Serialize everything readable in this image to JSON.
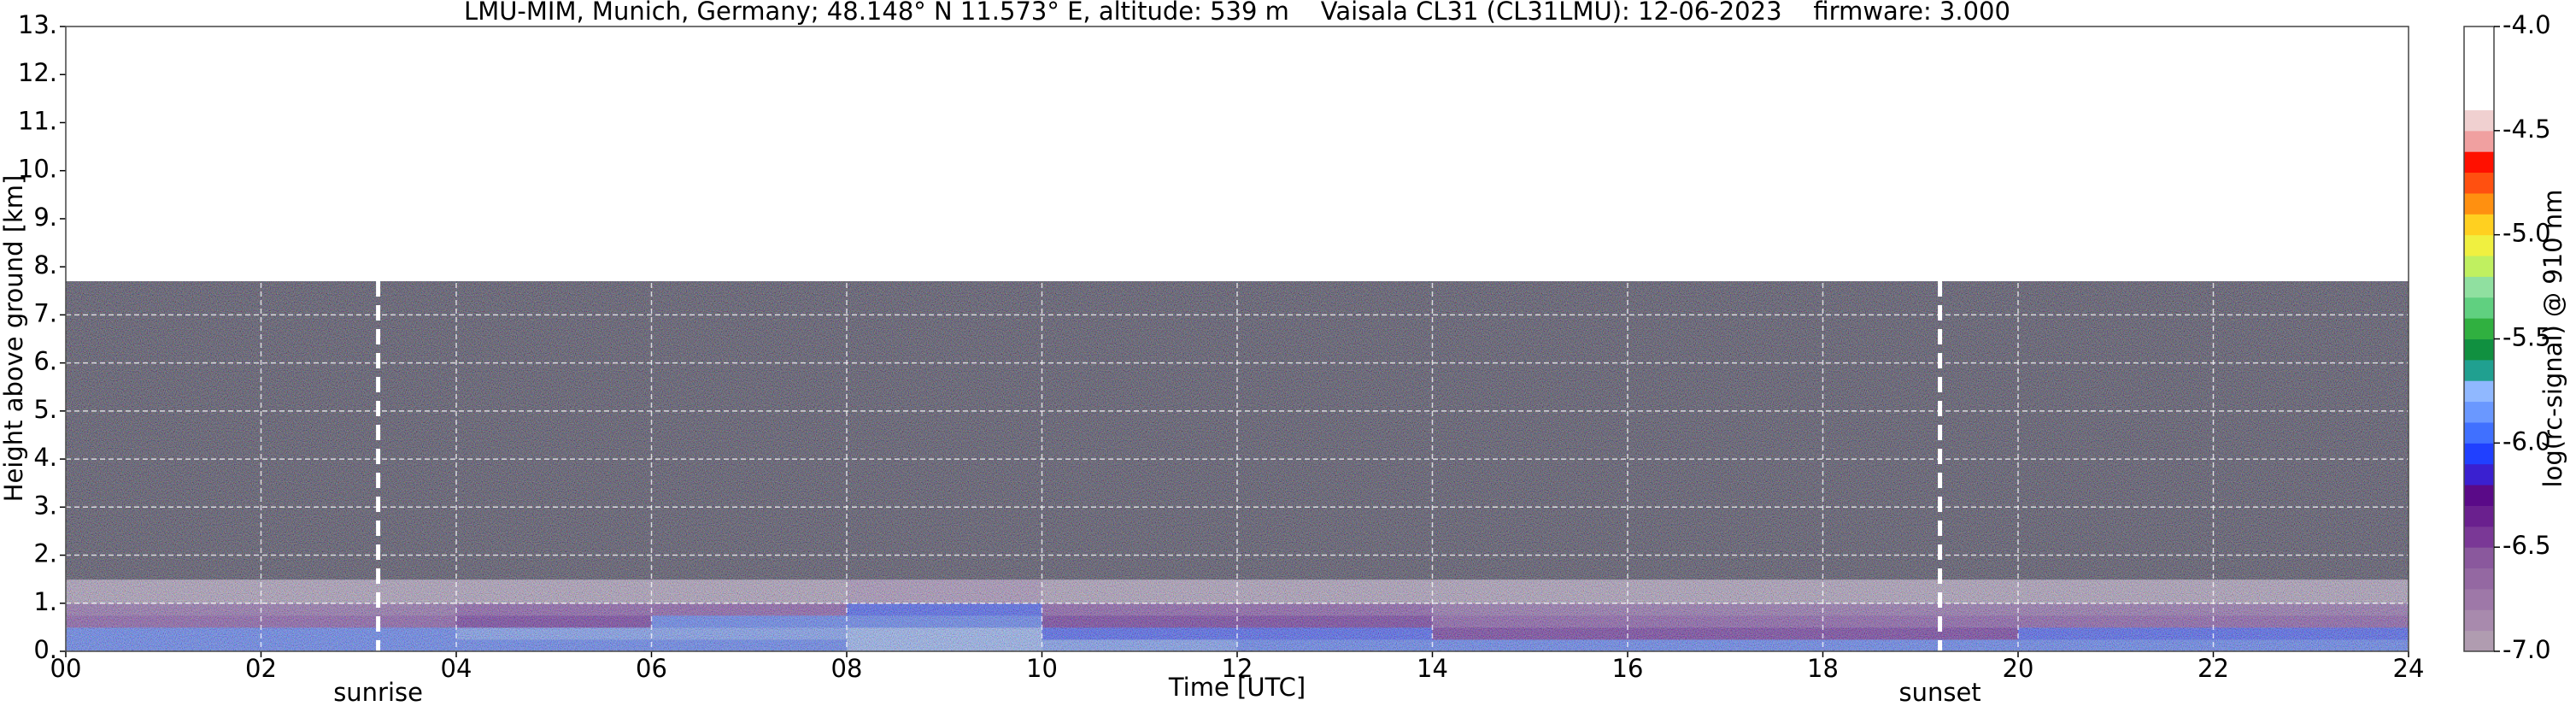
{
  "chart_data": {
    "type": "heatmap",
    "title": "LMU-MIM, Munich, Germany; 48.148° N 11.573° E, altitude: 539 m    Vaisala CL31 (CL31LMU): 12-06-2023    firmware: 3.000",
    "x_label": "Time [UTC]",
    "y_label": "Height above ground [km]",
    "colorbar_label": "log(rc-signal) @ 910 nm",
    "xlim": [
      0,
      24
    ],
    "xticks": [
      {
        "value": 0,
        "label": "00"
      },
      {
        "value": 2,
        "label": "02"
      },
      {
        "value": 4,
        "label": "04"
      },
      {
        "value": 6,
        "label": "06"
      },
      {
        "value": 8,
        "label": "08"
      },
      {
        "value": 10,
        "label": "10"
      },
      {
        "value": 12,
        "label": "12"
      },
      {
        "value": 14,
        "label": "14"
      },
      {
        "value": 16,
        "label": "16"
      },
      {
        "value": 18,
        "label": "18"
      },
      {
        "value": 20,
        "label": "20"
      },
      {
        "value": 22,
        "label": "22"
      },
      24
    ],
    "ylim": [
      0,
      13
    ],
    "yticks": [
      {
        "value": 0,
        "label": "0."
      },
      {
        "value": 1,
        "label": "1."
      },
      {
        "value": 2,
        "label": "2."
      },
      {
        "value": 3,
        "label": "3."
      },
      {
        "value": 4,
        "label": "4."
      },
      {
        "value": 5,
        "label": "5."
      },
      {
        "value": 6,
        "label": "6."
      },
      {
        "value": 7,
        "label": "7."
      },
      {
        "value": 8,
        "label": "8."
      },
      {
        "value": 9,
        "label": "9."
      },
      {
        "value": 10,
        "label": "10."
      },
      {
        "value": 11,
        "label": "11."
      },
      {
        "value": 12,
        "label": "12."
      },
      {
        "value": 13,
        "label": "13."
      }
    ],
    "zlim": [
      -7,
      -4
    ],
    "zticks": [
      {
        "value": -7,
        "label": "-7.0"
      },
      {
        "value": -6.5,
        "label": "-6.5"
      },
      {
        "value": -6,
        "label": "-6.0"
      },
      {
        "value": -5.5,
        "label": "-5.5"
      },
      {
        "value": -5,
        "label": "-5.0"
      },
      {
        "value": -4.5,
        "label": "-4.5"
      },
      {
        "value": -4,
        "label": "-4.0"
      }
    ],
    "colormap": [
      "#b09cb0",
      "#a88aad",
      "#9e78a8",
      "#9468a2",
      "#8a589d",
      "#7a3896",
      "#6a208e",
      "#5a0a88",
      "#3a20d0",
      "#2040ff",
      "#4070ff",
      "#6a98ff",
      "#90b8ff",
      "#20a090",
      "#109040",
      "#30b040",
      "#60d080",
      "#90e0a0",
      "#c0f060",
      "#f0f040",
      "#ffd020",
      "#ff9010",
      "#ff5010",
      "#ff1000",
      "#f0a0a0",
      "#f0d0d0",
      "#ffffff",
      "#ffffff",
      "#ffffff",
      "#ffffff"
    ],
    "under_color": "#2a2530",
    "grid": true,
    "x_edges": [
      0,
      2,
      4,
      6,
      8,
      10,
      12,
      14,
      16,
      18,
      20,
      22,
      24
    ],
    "y_edges": [
      0,
      0.25,
      0.5,
      0.75,
      1.0,
      1.5,
      3,
      7.7
    ],
    "z": [
      [
        -5.95,
        -5.95,
        -5.9,
        -5.9,
        -5.8,
        -5.85,
        -5.95,
        -6.0,
        -6.0,
        -6.0,
        -5.95,
        -5.95
      ],
      [
        -5.9,
        -5.9,
        -5.85,
        -5.85,
        -5.75,
        -6.05,
        -6.05,
        -6.3,
        -6.3,
        -6.3,
        -6.1,
        -6.1
      ],
      [
        -6.4,
        -6.4,
        -6.3,
        -5.95,
        -5.9,
        -6.3,
        -6.3,
        -6.4,
        -6.4,
        -6.4,
        -6.4,
        -6.4
      ],
      [
        -6.55,
        -6.55,
        -6.5,
        -6.4,
        -6.1,
        -6.5,
        -6.5,
        -6.55,
        -6.55,
        -6.55,
        -6.55,
        -6.55
      ],
      [
        -6.9,
        -6.9,
        -6.9,
        -6.9,
        -6.85,
        -6.9,
        -6.9,
        -6.9,
        -6.9,
        -6.9,
        -6.9,
        -6.9
      ],
      [
        -7.1,
        -7.1,
        -7.1,
        -7.1,
        -7.1,
        -7.1,
        -7.1,
        -7.1,
        -7.1,
        -7.1,
        -7.1,
        -7.1
      ],
      [
        -7.15,
        -7.15,
        -7.15,
        -7.15,
        -7.15,
        -7.15,
        -7.15,
        -7.15,
        -7.15,
        -7.15,
        -7.15,
        -7.15
      ]
    ],
    "annotations": [
      {
        "label": "sunrise",
        "x": 3.2
      },
      {
        "label": "sunset",
        "x": 19.2
      }
    ]
  }
}
